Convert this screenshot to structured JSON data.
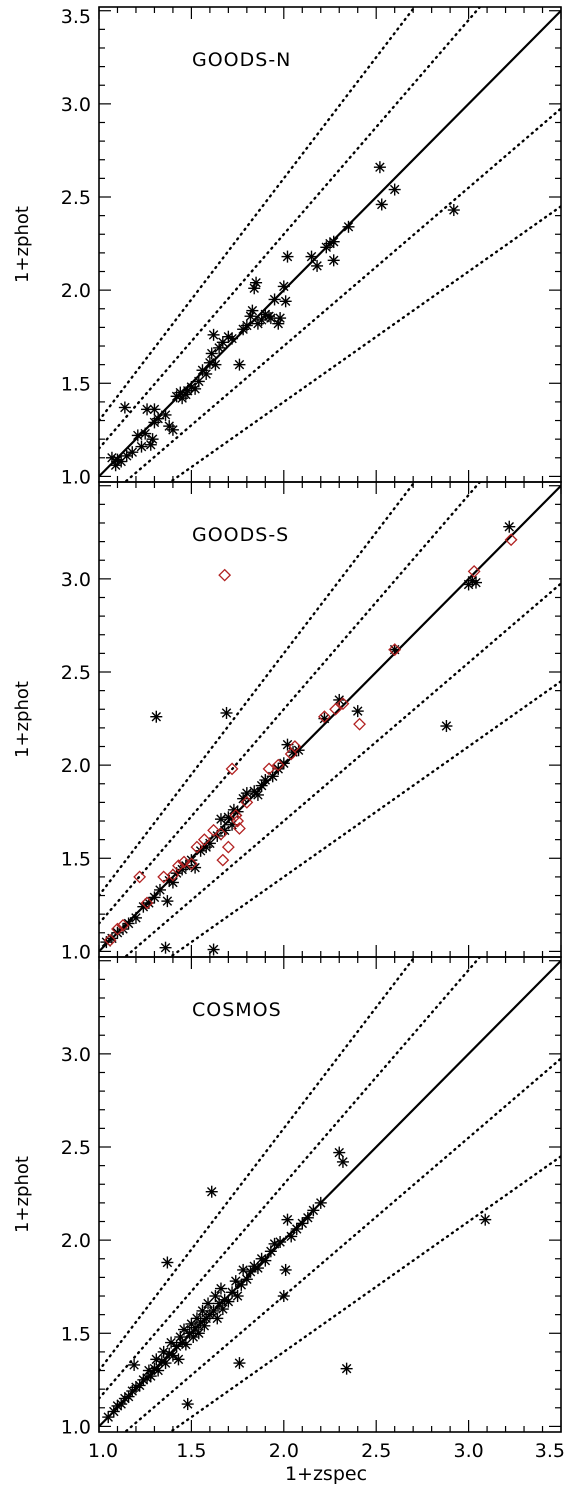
{
  "chart_data": [
    {
      "type": "scatter",
      "title": "GOODS-N",
      "xlabel": "",
      "ylabel": "1+zphot",
      "xlim": [
        1.0,
        3.5
      ],
      "ylim": [
        0.97,
        3.52
      ],
      "y_ticks": [
        "1.0",
        "1.5",
        "2.0",
        "2.5",
        "3.0",
        "3.5"
      ],
      "reference_lines": {
        "solid": "y = x",
        "dotted_offsets": [
          -0.3,
          -0.15,
          0.15,
          0.3
        ]
      },
      "series": [
        {
          "marker": "asterisk",
          "color": "#000000",
          "points": [
            [
              1.07,
              1.1
            ],
            [
              1.09,
              1.06
            ],
            [
              1.1,
              1.09
            ],
            [
              1.12,
              1.08
            ],
            [
              1.14,
              1.37
            ],
            [
              1.15,
              1.11
            ],
            [
              1.18,
              1.13
            ],
            [
              1.21,
              1.22
            ],
            [
              1.23,
              1.16
            ],
            [
              1.25,
              1.23
            ],
            [
              1.26,
              1.36
            ],
            [
              1.28,
              1.17
            ],
            [
              1.29,
              1.2
            ],
            [
              1.3,
              1.29
            ],
            [
              1.3,
              1.36
            ],
            [
              1.32,
              1.31
            ],
            [
              1.36,
              1.33
            ],
            [
              1.38,
              1.27
            ],
            [
              1.4,
              1.25
            ],
            [
              1.42,
              1.43
            ],
            [
              1.44,
              1.45
            ],
            [
              1.45,
              1.42
            ],
            [
              1.47,
              1.44
            ],
            [
              1.48,
              1.46
            ],
            [
              1.5,
              1.48
            ],
            [
              1.52,
              1.47
            ],
            [
              1.54,
              1.51
            ],
            [
              1.56,
              1.57
            ],
            [
              1.58,
              1.55
            ],
            [
              1.6,
              1.61
            ],
            [
              1.61,
              1.66
            ],
            [
              1.62,
              1.76
            ],
            [
              1.63,
              1.6
            ],
            [
              1.65,
              1.69
            ],
            [
              1.67,
              1.72
            ],
            [
              1.7,
              1.75
            ],
            [
              1.72,
              1.74
            ],
            [
              1.76,
              1.6
            ],
            [
              1.78,
              1.79
            ],
            [
              1.8,
              1.81
            ],
            [
              1.82,
              1.86
            ],
            [
              1.83,
              1.89
            ],
            [
              1.84,
              2.01
            ],
            [
              1.85,
              2.04
            ],
            [
              1.86,
              1.82
            ],
            [
              1.88,
              1.84
            ],
            [
              1.9,
              1.87
            ],
            [
              1.92,
              1.86
            ],
            [
              1.93,
              1.85
            ],
            [
              1.95,
              1.95
            ],
            [
              1.97,
              1.82
            ],
            [
              1.98,
              1.85
            ],
            [
              2.0,
              2.02
            ],
            [
              2.01,
              1.94
            ],
            [
              2.02,
              2.18
            ],
            [
              2.15,
              2.18
            ],
            [
              2.18,
              2.13
            ],
            [
              2.23,
              2.23
            ],
            [
              2.25,
              2.25
            ],
            [
              2.27,
              2.26
            ],
            [
              2.27,
              2.16
            ],
            [
              2.35,
              2.34
            ],
            [
              2.52,
              2.66
            ],
            [
              2.53,
              2.46
            ],
            [
              2.6,
              2.54
            ],
            [
              2.92,
              2.43
            ]
          ]
        }
      ]
    },
    {
      "type": "scatter",
      "title": "GOODS-S",
      "xlabel": "",
      "ylabel": "1+zphot",
      "xlim": [
        1.0,
        3.5
      ],
      "ylim": [
        0.97,
        3.52
      ],
      "y_ticks": [
        "1.0",
        "1.5",
        "2.0",
        "2.5",
        "3.0"
      ],
      "reference_lines": {
        "solid": "y = x",
        "dotted_offsets": [
          -0.3,
          -0.15,
          0.15,
          0.3
        ]
      },
      "series": [
        {
          "marker": "asterisk",
          "color": "#000000",
          "points": [
            [
              1.04,
              1.05
            ],
            [
              1.07,
              1.07
            ],
            [
              1.1,
              1.1
            ],
            [
              1.13,
              1.12
            ],
            [
              1.16,
              1.15
            ],
            [
              1.2,
              1.18
            ],
            [
              1.24,
              1.24
            ],
            [
              1.27,
              1.26
            ],
            [
              1.3,
              1.29
            ],
            [
              1.31,
              2.26
            ],
            [
              1.33,
              1.33
            ],
            [
              1.36,
              1.02
            ],
            [
              1.37,
              1.27
            ],
            [
              1.38,
              1.38
            ],
            [
              1.4,
              1.37
            ],
            [
              1.42,
              1.42
            ],
            [
              1.45,
              1.44
            ],
            [
              1.47,
              1.46
            ],
            [
              1.5,
              1.49
            ],
            [
              1.52,
              1.45
            ],
            [
              1.55,
              1.54
            ],
            [
              1.58,
              1.56
            ],
            [
              1.6,
              1.58
            ],
            [
              1.62,
              1.01
            ],
            [
              1.64,
              1.62
            ],
            [
              1.66,
              1.71
            ],
            [
              1.68,
              1.65
            ],
            [
              1.69,
              2.28
            ],
            [
              1.7,
              1.72
            ],
            [
              1.72,
              1.68
            ],
            [
              1.73,
              1.76
            ],
            [
              1.75,
              1.75
            ],
            [
              1.78,
              1.82
            ],
            [
              1.8,
              1.85
            ],
            [
              1.84,
              1.86
            ],
            [
              1.86,
              1.84
            ],
            [
              1.88,
              1.89
            ],
            [
              1.9,
              1.92
            ],
            [
              1.94,
              1.94
            ],
            [
              1.97,
              1.98
            ],
            [
              2.0,
              2.01
            ],
            [
              2.02,
              2.11
            ],
            [
              2.05,
              2.07
            ],
            [
              2.08,
              2.08
            ],
            [
              2.22,
              2.25
            ],
            [
              2.3,
              2.35
            ],
            [
              2.4,
              2.29
            ],
            [
              2.6,
              2.62
            ],
            [
              2.88,
              2.21
            ],
            [
              3.0,
              2.97
            ],
            [
              3.02,
              2.99
            ],
            [
              3.04,
              2.98
            ],
            [
              3.22,
              3.28
            ]
          ]
        },
        {
          "marker": "diamond",
          "color": "#b22222",
          "points": [
            [
              1.06,
              1.06
            ],
            [
              1.1,
              1.12
            ],
            [
              1.13,
              1.14
            ],
            [
              1.22,
              1.4
            ],
            [
              1.26,
              1.26
            ],
            [
              1.35,
              1.4
            ],
            [
              1.4,
              1.41
            ],
            [
              1.43,
              1.46
            ],
            [
              1.46,
              1.48
            ],
            [
              1.5,
              1.47
            ],
            [
              1.53,
              1.56
            ],
            [
              1.57,
              1.6
            ],
            [
              1.62,
              1.65
            ],
            [
              1.66,
              1.63
            ],
            [
              1.67,
              1.49
            ],
            [
              1.68,
              3.02
            ],
            [
              1.7,
              1.56
            ],
            [
              1.72,
              1.98
            ],
            [
              1.74,
              1.73
            ],
            [
              1.75,
              1.7
            ],
            [
              1.76,
              1.66
            ],
            [
              1.8,
              1.8
            ],
            [
              1.92,
              1.98
            ],
            [
              1.97,
              2.0
            ],
            [
              2.04,
              2.06
            ],
            [
              2.06,
              2.1
            ],
            [
              2.22,
              2.26
            ],
            [
              2.28,
              2.3
            ],
            [
              2.32,
              2.33
            ],
            [
              2.41,
              2.22
            ],
            [
              2.6,
              2.62
            ],
            [
              3.03,
              3.04
            ],
            [
              3.23,
              3.21
            ]
          ]
        }
      ]
    },
    {
      "type": "scatter",
      "title": "COSMOS",
      "xlabel": "1+zspec",
      "ylabel": "1+zphot",
      "xlim": [
        1.0,
        3.5
      ],
      "ylim": [
        0.97,
        3.52
      ],
      "x_ticks": [
        "1.0",
        "1.5",
        "2.0",
        "2.5",
        "3.0",
        "3.5"
      ],
      "y_ticks": [
        "1.0",
        "1.5",
        "2.0",
        "2.5",
        "3.0"
      ],
      "reference_lines": {
        "solid": "y = x",
        "dotted_offsets": [
          -0.3,
          -0.15,
          0.15,
          0.3
        ]
      },
      "series": [
        {
          "marker": "asterisk",
          "color": "#000000",
          "points": [
            [
              1.05,
              1.05
            ],
            [
              1.08,
              1.08
            ],
            [
              1.1,
              1.11
            ],
            [
              1.12,
              1.12
            ],
            [
              1.14,
              1.15
            ],
            [
              1.16,
              1.16
            ],
            [
              1.18,
              1.19
            ],
            [
              1.19,
              1.33
            ],
            [
              1.2,
              1.21
            ],
            [
              1.22,
              1.22
            ],
            [
              1.24,
              1.25
            ],
            [
              1.26,
              1.26
            ],
            [
              1.27,
              1.3
            ],
            [
              1.28,
              1.27
            ],
            [
              1.3,
              1.31
            ],
            [
              1.31,
              1.36
            ],
            [
              1.32,
              1.3
            ],
            [
              1.34,
              1.35
            ],
            [
              1.35,
              1.4
            ],
            [
              1.36,
              1.34
            ],
            [
              1.37,
              1.88
            ],
            [
              1.38,
              1.39
            ],
            [
              1.39,
              1.45
            ],
            [
              1.4,
              1.38
            ],
            [
              1.42,
              1.43
            ],
            [
              1.43,
              1.36
            ],
            [
              1.44,
              1.48
            ],
            [
              1.45,
              1.45
            ],
            [
              1.46,
              1.52
            ],
            [
              1.47,
              1.44
            ],
            [
              1.48,
              1.12
            ],
            [
              1.49,
              1.5
            ],
            [
              1.5,
              1.55
            ],
            [
              1.51,
              1.48
            ],
            [
              1.52,
              1.53
            ],
            [
              1.53,
              1.58
            ],
            [
              1.54,
              1.5
            ],
            [
              1.55,
              1.56
            ],
            [
              1.56,
              1.62
            ],
            [
              1.57,
              1.54
            ],
            [
              1.58,
              1.58
            ],
            [
              1.59,
              1.66
            ],
            [
              1.6,
              1.6
            ],
            [
              1.61,
              2.26
            ],
            [
              1.62,
              1.62
            ],
            [
              1.63,
              1.7
            ],
            [
              1.64,
              1.58
            ],
            [
              1.65,
              1.66
            ],
            [
              1.66,
              1.74
            ],
            [
              1.67,
              1.63
            ],
            [
              1.68,
              1.68
            ],
            [
              1.7,
              1.67
            ],
            [
              1.72,
              1.72
            ],
            [
              1.74,
              1.78
            ],
            [
              1.75,
              1.7
            ],
            [
              1.76,
              1.34
            ],
            [
              1.77,
              1.76
            ],
            [
              1.78,
              1.84
            ],
            [
              1.8,
              1.79
            ],
            [
              1.82,
              1.83
            ],
            [
              1.84,
              1.86
            ],
            [
              1.86,
              1.85
            ],
            [
              1.88,
              1.9
            ],
            [
              1.9,
              1.89
            ],
            [
              1.93,
              1.94
            ],
            [
              1.95,
              1.98
            ],
            [
              1.98,
              1.99
            ],
            [
              2.0,
              1.7
            ],
            [
              2.01,
              1.84
            ],
            [
              2.02,
              2.11
            ],
            [
              2.04,
              2.02
            ],
            [
              2.07,
              2.06
            ],
            [
              2.1,
              2.09
            ],
            [
              2.13,
              2.12
            ],
            [
              2.16,
              2.16
            ],
            [
              2.2,
              2.2
            ],
            [
              2.3,
              2.47
            ],
            [
              2.32,
              2.42
            ],
            [
              2.34,
              1.31
            ],
            [
              3.09,
              2.11
            ]
          ]
        }
      ]
    }
  ]
}
